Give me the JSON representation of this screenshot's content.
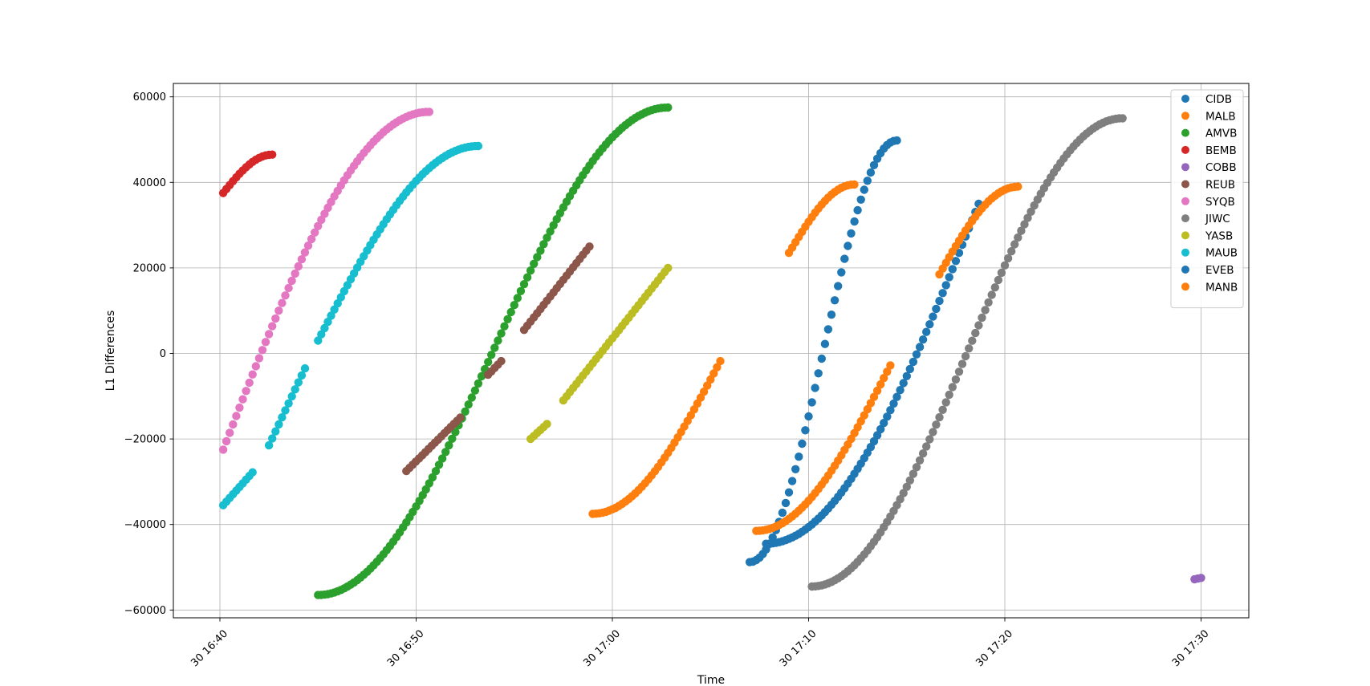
{
  "chart_data": {
    "type": "scatter",
    "title": "",
    "xlabel": "Time",
    "ylabel": "L1 Differences",
    "x_unit": "minutes past 30 16:40",
    "xlim": [
      "30 16:37:41",
      "30 17:32:33"
    ],
    "ylim": [
      -62000,
      63000
    ],
    "x_ticks": [
      {
        "label": "30 16:40",
        "value": 0
      },
      {
        "label": "30 16:50",
        "value": 10
      },
      {
        "label": "30 17:00",
        "value": 20
      },
      {
        "label": "30 17:10",
        "value": 30
      },
      {
        "label": "30 17:20",
        "value": 40
      },
      {
        "label": "30 17:30",
        "value": 50
      }
    ],
    "y_ticks": [
      {
        "label": "60000",
        "value": 60000
      },
      {
        "label": "40000",
        "value": 40000
      },
      {
        "label": "20000",
        "value": 20000
      },
      {
        "label": "0",
        "value": 0
      },
      {
        "label": "−20000",
        "value": -20000
      },
      {
        "label": "−40000",
        "value": -40000
      },
      {
        "label": "−60000",
        "value": -60000
      }
    ],
    "grid": true,
    "legend_position": "top-right",
    "series": [
      {
        "name": "CIDB",
        "color": "#1f77b4",
        "segments": [
          {
            "start": "30 17:07:00",
            "end": "30 17:14:30",
            "shape": "scurve",
            "y0": -48800,
            "y1": 49800
          }
        ]
      },
      {
        "name": "MALB",
        "color": "#ff7f0e",
        "segments": [
          {
            "start": "30 16:59:00",
            "end": "30 17:05:30",
            "shape": "accel",
            "y0": -37500,
            "y1": -1800
          },
          {
            "start": "30 17:09:00",
            "end": "30 17:12:20",
            "shape": "decel",
            "y0": 23500,
            "y1": 39500
          }
        ]
      },
      {
        "name": "AMVB",
        "color": "#2ca02c",
        "segments": [
          {
            "start": "30 16:45:00",
            "end": "30 17:02:50",
            "shape": "scurve",
            "y0": -56500,
            "y1": 57500
          }
        ]
      },
      {
        "name": "BEMB",
        "color": "#d62728",
        "segments": [
          {
            "start": "30 16:40:10",
            "end": "30 16:42:40",
            "shape": "decel",
            "y0": 37500,
            "y1": 46500
          }
        ]
      },
      {
        "name": "COBB",
        "color": "#9467bd",
        "segments": [
          {
            "start": "30 17:29:40",
            "end": "30 17:30:00",
            "shape": "linear",
            "y0": -52800,
            "y1": -52500
          }
        ]
      },
      {
        "name": "REUB",
        "color": "#8c564b",
        "segments": [
          {
            "start": "30 16:49:30",
            "end": "30 16:52:15",
            "shape": "linear",
            "y0": -27500,
            "y1": -15000
          },
          {
            "start": "30 16:53:40",
            "end": "30 16:54:20",
            "shape": "linear",
            "y0": -5000,
            "y1": -1800
          },
          {
            "start": "30 16:55:30",
            "end": "30 16:58:50",
            "shape": "linear",
            "y0": 5500,
            "y1": 25000
          }
        ]
      },
      {
        "name": "SYQB",
        "color": "#e377c2",
        "segments": [
          {
            "start": "30 16:40:10",
            "end": "30 16:50:40",
            "shape": "decel",
            "y0": -22500,
            "y1": 56500
          }
        ]
      },
      {
        "name": "JIWC",
        "color": "#7f7f7f",
        "segments": [
          {
            "start": "30 17:10:10",
            "end": "30 17:26:00",
            "shape": "scurve",
            "y0": -54500,
            "y1": 55000
          }
        ]
      },
      {
        "name": "YASB",
        "color": "#bcbd22",
        "segments": [
          {
            "start": "30 16:55:50",
            "end": "30 16:56:40",
            "shape": "linear",
            "y0": -20000,
            "y1": -16500
          },
          {
            "start": "30 16:57:30",
            "end": "30 17:02:50",
            "shape": "linear",
            "y0": -11000,
            "y1": 20000
          }
        ]
      },
      {
        "name": "MAUB",
        "color": "#17becf",
        "segments": [
          {
            "start": "30 16:40:10",
            "end": "30 16:41:40",
            "shape": "linear",
            "y0": -35500,
            "y1": -27800
          },
          {
            "start": "30 16:42:30",
            "end": "30 16:44:20",
            "shape": "linear",
            "y0": -21500,
            "y1": -3500
          },
          {
            "start": "30 16:45:00",
            "end": "30 16:53:10",
            "shape": "decel",
            "y0": 3000,
            "y1": 48500
          }
        ]
      },
      {
        "name": "EVEB",
        "color": "#1f77b4",
        "segments": [
          {
            "start": "30 17:07:50",
            "end": "30 17:18:40",
            "shape": "accel",
            "y0": -44500,
            "y1": 35000
          }
        ]
      },
      {
        "name": "MANB",
        "color": "#ff7f0e",
        "segments": [
          {
            "start": "30 17:07:20",
            "end": "30 17:14:10",
            "shape": "accel",
            "y0": -41500,
            "y1": -2800
          },
          {
            "start": "30 17:16:40",
            "end": "30 17:20:40",
            "shape": "decel",
            "y0": 18500,
            "y1": 39000
          }
        ]
      }
    ]
  }
}
